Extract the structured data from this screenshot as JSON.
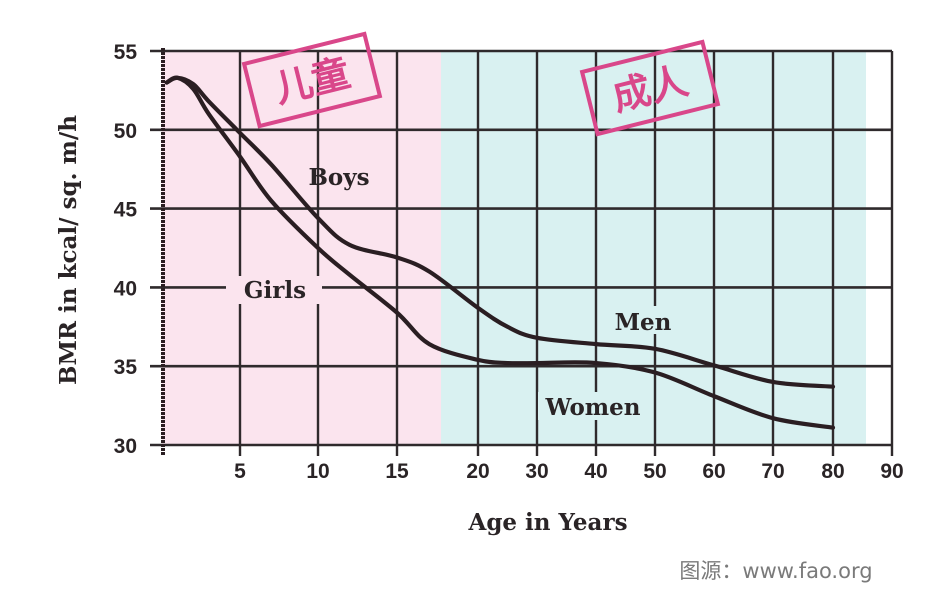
{
  "chart_data": {
    "type": "line",
    "xlabel": "Age in Years",
    "ylabel": "BMR in kcal/ sq. m/h",
    "ylim": [
      30,
      55
    ],
    "yticks": [
      "55",
      "50",
      "45",
      "40",
      "35",
      "30"
    ],
    "xticks": [
      "5",
      "10",
      "15",
      "20",
      "30",
      "40",
      "50",
      "60",
      "70",
      "80",
      "90"
    ],
    "x_scale": "piecewise: 0-15 in 5-year steps, 20-90 in 10-year steps (compressed)",
    "grid": true,
    "regions": [
      {
        "label": "儿童",
        "from": 0,
        "to": 17.5,
        "color": "#fbe4ee"
      },
      {
        "label": "成人",
        "from": 17.5,
        "to": 86,
        "color": "#d9f1f1"
      }
    ],
    "series": [
      {
        "labels": [
          "Boys",
          "Men"
        ],
        "color": "#2a1e22",
        "x": [
          0.3,
          1,
          2,
          3,
          5,
          7,
          10,
          12,
          15,
          17,
          20,
          25,
          30,
          40,
          50,
          60,
          70,
          80
        ],
        "y": [
          53.0,
          53.3,
          52.9,
          51.8,
          49.8,
          47.8,
          44.4,
          42.7,
          41.9,
          41.0,
          38.7,
          37.5,
          36.8,
          36.4,
          36.1,
          35.05,
          34.0,
          33.7
        ]
      },
      {
        "labels": [
          "Girls",
          "Women"
        ],
        "color": "#2a1e22",
        "x": [
          0.3,
          1,
          2,
          3,
          5,
          7,
          10,
          12,
          15,
          17,
          20,
          25,
          30,
          40,
          50,
          60,
          70,
          80
        ],
        "y": [
          53.0,
          53.3,
          52.6,
          51.0,
          48.3,
          45.5,
          42.5,
          40.8,
          38.4,
          36.4,
          35.4,
          35.2,
          35.2,
          35.2,
          34.6,
          33.1,
          31.7,
          31.1
        ]
      }
    ],
    "annotations": [
      "Boys",
      "Girls",
      "Men",
      "Women"
    ]
  },
  "source": "图源：www.fao.org",
  "colors": {
    "stamp": "#d9478a",
    "line": "#2a1e22",
    "grid": "#2f2a2c"
  }
}
